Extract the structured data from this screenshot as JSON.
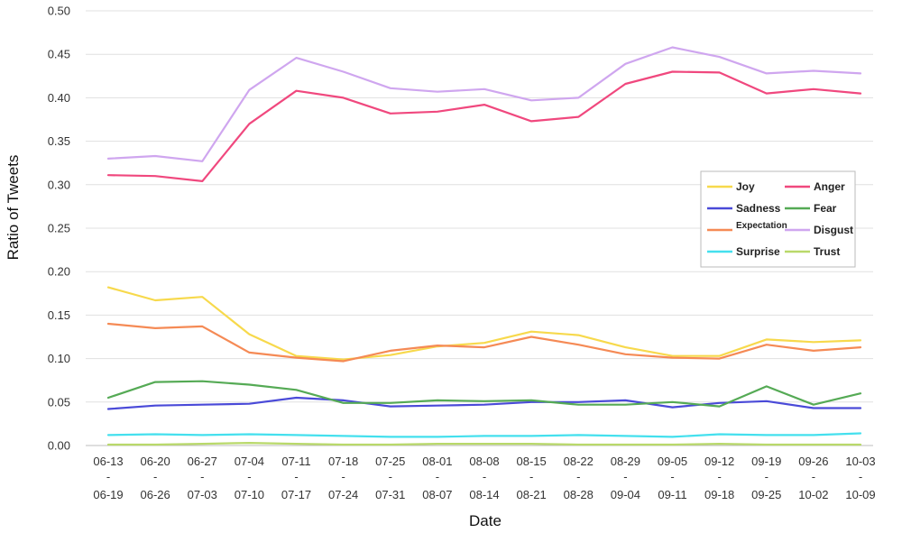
{
  "chart_data": {
    "type": "line",
    "xlabel": "Date",
    "ylabel": "Ratio of Tweets",
    "ylim": [
      0,
      0.5
    ],
    "y_ticks": [
      "0.00",
      "0.05",
      "0.10",
      "0.15",
      "0.20",
      "0.25",
      "0.30",
      "0.35",
      "0.40",
      "0.45",
      "0.50"
    ],
    "grid": "horizontal",
    "legend_position": "right",
    "categories": [
      {
        "start": "06-13",
        "sep": "-",
        "end": "06-19"
      },
      {
        "start": "06-20",
        "sep": "-",
        "end": "06-26"
      },
      {
        "start": "06-27",
        "sep": "-",
        "end": "07-03"
      },
      {
        "start": "07-04",
        "sep": "-",
        "end": "07-10"
      },
      {
        "start": "07-11",
        "sep": "-",
        "end": "07-17"
      },
      {
        "start": "07-18",
        "sep": "-",
        "end": "07-24"
      },
      {
        "start": "07-25",
        "sep": "-",
        "end": "07-31"
      },
      {
        "start": "08-01",
        "sep": "-",
        "end": "08-07"
      },
      {
        "start": "08-08",
        "sep": "-",
        "end": "08-14"
      },
      {
        "start": "08-15",
        "sep": "-",
        "end": "08-21"
      },
      {
        "start": "08-22",
        "sep": "-",
        "end": "08-28"
      },
      {
        "start": "08-29",
        "sep": "-",
        "end": "09-04"
      },
      {
        "start": "09-05",
        "sep": "-",
        "end": "09-11"
      },
      {
        "start": "09-12",
        "sep": "-",
        "end": "09-18"
      },
      {
        "start": "09-19",
        "sep": "-",
        "end": "09-25"
      },
      {
        "start": "09-26",
        "sep": "-",
        "end": "10-02"
      },
      {
        "start": "10-03",
        "sep": "-",
        "end": "10-09"
      }
    ],
    "series": [
      {
        "name": "Joy",
        "color": "#f7d94c",
        "values": [
          0.182,
          0.167,
          0.171,
          0.128,
          0.103,
          0.099,
          0.104,
          0.114,
          0.118,
          0.131,
          0.127,
          0.113,
          0.103,
          0.103,
          0.122,
          0.119,
          0.121
        ]
      },
      {
        "name": "Anger",
        "color": "#f0487e",
        "values": [
          0.311,
          0.31,
          0.304,
          0.37,
          0.408,
          0.4,
          0.382,
          0.384,
          0.392,
          0.373,
          0.378,
          0.416,
          0.43,
          0.429,
          0.405,
          0.41,
          0.405
        ]
      },
      {
        "name": "Sadness",
        "color": "#4a4ad8",
        "values": [
          0.042,
          0.046,
          0.047,
          0.048,
          0.055,
          0.052,
          0.045,
          0.046,
          0.047,
          0.05,
          0.05,
          0.052,
          0.044,
          0.049,
          0.051,
          0.043,
          0.043
        ]
      },
      {
        "name": "Fear",
        "color": "#55aa55",
        "values": [
          0.055,
          0.073,
          0.074,
          0.07,
          0.064,
          0.049,
          0.049,
          0.052,
          0.051,
          0.052,
          0.047,
          0.047,
          0.05,
          0.045,
          0.068,
          0.047,
          0.06
        ]
      },
      {
        "name": "Expectation",
        "color": "#f58a55",
        "values": [
          0.14,
          0.135,
          0.137,
          0.107,
          0.101,
          0.097,
          0.109,
          0.115,
          0.113,
          0.125,
          0.116,
          0.105,
          0.101,
          0.1,
          0.116,
          0.109,
          0.113
        ]
      },
      {
        "name": "Disgust",
        "color": "#cfa6ef",
        "values": [
          0.33,
          0.333,
          0.327,
          0.409,
          0.446,
          0.43,
          0.411,
          0.407,
          0.41,
          0.397,
          0.4,
          0.439,
          0.458,
          0.447,
          0.428,
          0.431,
          0.428
        ]
      },
      {
        "name": "Surprise",
        "color": "#44e0ee",
        "values": [
          0.012,
          0.013,
          0.012,
          0.013,
          0.012,
          0.011,
          0.01,
          0.01,
          0.011,
          0.011,
          0.012,
          0.011,
          0.01,
          0.013,
          0.012,
          0.012,
          0.014
        ]
      },
      {
        "name": "Trust",
        "color": "#b9d96a",
        "values": [
          0.001,
          0.001,
          0.002,
          0.003,
          0.002,
          0.001,
          0.001,
          0.002,
          0.002,
          0.002,
          0.001,
          0.001,
          0.001,
          0.002,
          0.001,
          0.001,
          0.001
        ]
      }
    ],
    "legend_order": [
      "Joy",
      "Anger",
      "Sadness",
      "Fear",
      "Expectation",
      "Disgust",
      "Surprise",
      "Trust"
    ]
  }
}
